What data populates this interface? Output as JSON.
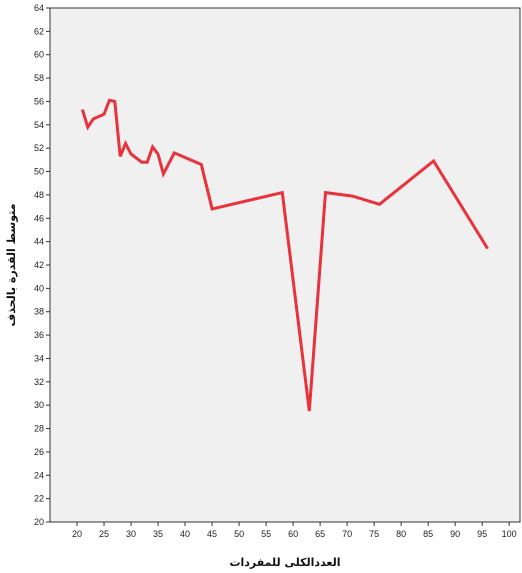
{
  "chart_data": {
    "type": "line",
    "title": "",
    "xlabel": "العددالكلى للمفردات",
    "ylabel": "متوسط القدرة بالحذف",
    "xlim": [
      15,
      102
    ],
    "ylim": [
      20,
      64
    ],
    "x_ticks": [
      20,
      25,
      30,
      35,
      40,
      45,
      50,
      55,
      60,
      65,
      70,
      75,
      80,
      85,
      90,
      95,
      100
    ],
    "y_ticks": [
      20,
      22,
      24,
      26,
      28,
      30,
      32,
      34,
      36,
      38,
      40,
      42,
      44,
      46,
      48,
      50,
      52,
      54,
      56,
      58,
      60,
      62,
      64
    ],
    "grid": false,
    "background_color": "#f0f0f0",
    "line_color": "#e8323c",
    "series": [
      {
        "x": [
          21,
          22,
          23,
          25,
          26,
          27,
          28,
          29,
          30,
          32,
          33,
          34,
          35,
          36,
          38,
          43,
          45,
          58,
          63,
          66,
          71,
          76,
          86,
          96
        ],
        "values": [
          55.3,
          53.8,
          54.5,
          54.9,
          56.1,
          56.0,
          51.3,
          52.4,
          51.5,
          50.8,
          50.8,
          52.1,
          51.5,
          49.8,
          51.6,
          50.6,
          46.8,
          48.2,
          29.5,
          48.2,
          47.9,
          47.2,
          50.9,
          43.4
        ]
      }
    ]
  }
}
